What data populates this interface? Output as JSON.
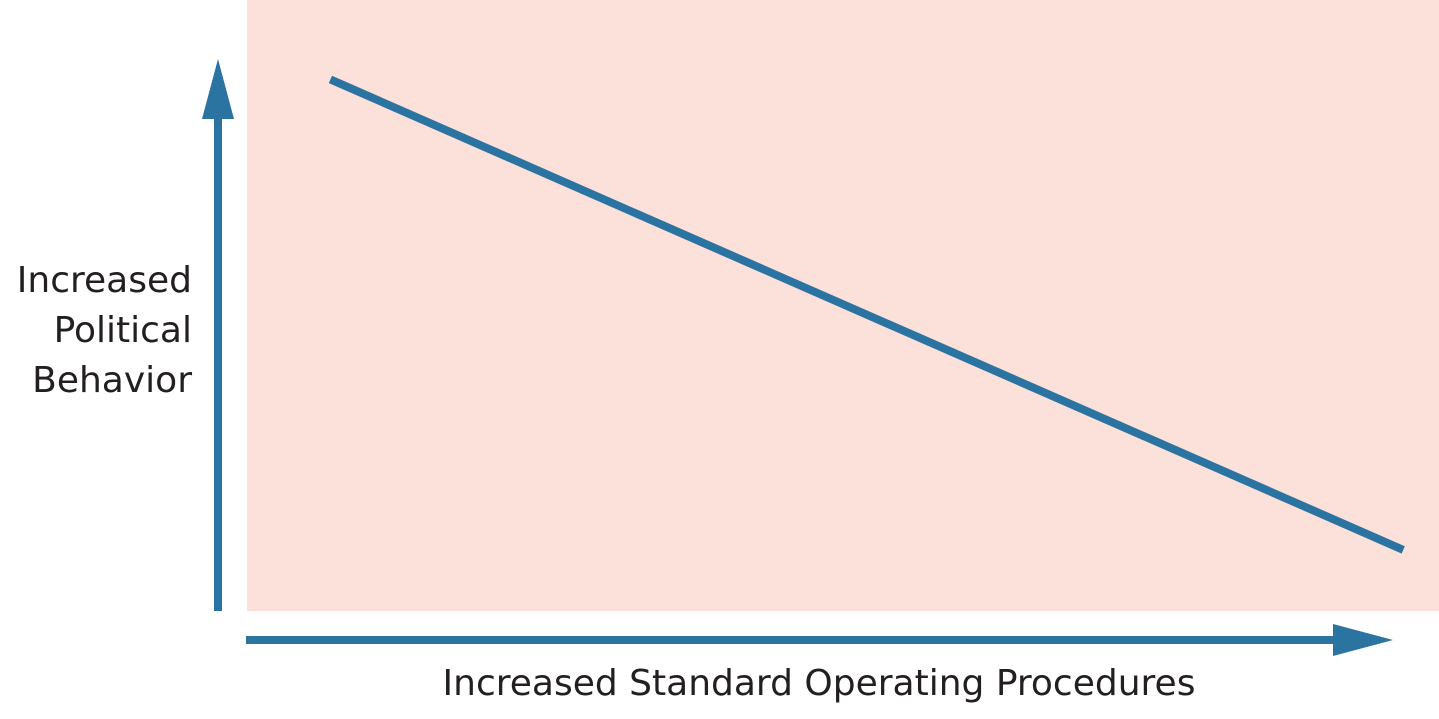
{
  "chart_data": {
    "type": "line",
    "title": "",
    "xlabel": "Increased Standard Operating Procedures",
    "ylabel_lines": [
      "Increased",
      "Political",
      "Behavior"
    ],
    "xlim": [
      0,
      1
    ],
    "ylim": [
      0,
      1
    ],
    "grid": false,
    "legend": "none",
    "show_ticks": false,
    "series": [
      {
        "x": [
          0.07,
          0.97
        ],
        "y": [
          0.87,
          0.1
        ]
      }
    ],
    "colors": {
      "line": "#2b73a0",
      "axes": "#2b73a0",
      "plot_background": "#fce1da",
      "text": "#231f20"
    }
  }
}
